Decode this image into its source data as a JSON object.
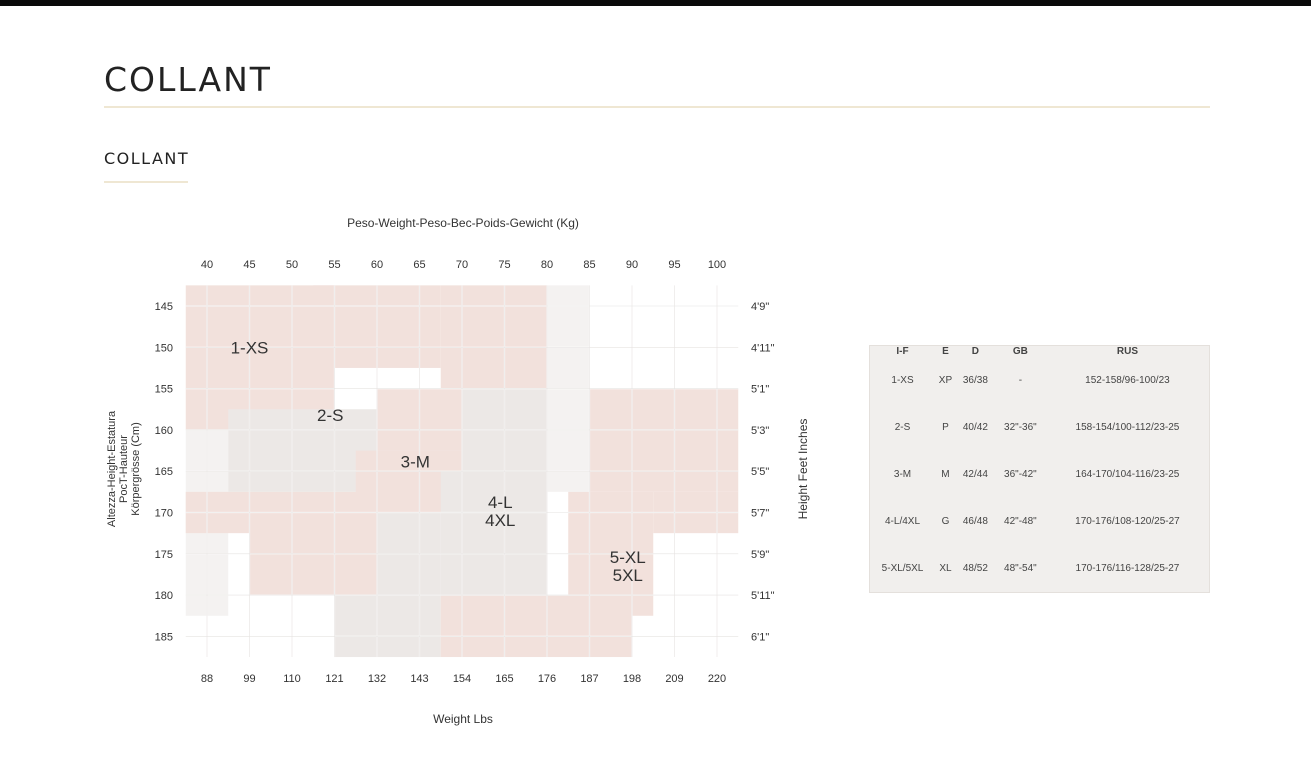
{
  "page": {
    "title": "COLLANT",
    "section_title": "COLLANT"
  },
  "chart_data": {
    "type": "heatmap",
    "title": "",
    "xlabel_top": "Peso-Weight-Peso-Вес-Poids-Gewicht (Kg)",
    "xlabel_bottom": "Weight Lbs",
    "ylabel_left": [
      "Altezza-Height-Estatura",
      "PocT-Hauteur",
      "Körpergrösse (Cm)"
    ],
    "ylabel_right": "Height Feet Inches",
    "x_ticks_kg": [
      40,
      45,
      50,
      55,
      60,
      65,
      70,
      75,
      80,
      85,
      90,
      95,
      100
    ],
    "x_ticks_lbs": [
      "88",
      "99",
      "110",
      "121",
      "132",
      "143",
      "154",
      "165",
      "176",
      "187",
      "198",
      "209",
      "220"
    ],
    "y_ticks_cm": [
      145,
      150,
      155,
      160,
      165,
      170,
      175,
      180,
      185
    ],
    "y_ticks_ft": [
      "4'9\"",
      "4'11\"",
      "5'1\"",
      "5'3\"",
      "5'5\"",
      "5'7\"",
      "5'9\"",
      "5'11\"",
      "6'1\""
    ],
    "colors": {
      "pink": "#f2e1dc",
      "gray": "#ece8e6",
      "light": "#f4f2f1"
    },
    "zones": [
      {
        "weight_kg": [
          37.5,
          55
        ],
        "height_cm": [
          142.5,
          160
        ],
        "color": "pink"
      },
      {
        "weight_kg": [
          52.5,
          67.5
        ],
        "height_cm": [
          142.5,
          152.5
        ],
        "color": "pink"
      },
      {
        "weight_kg": [
          67.5,
          80
        ],
        "height_cm": [
          142.5,
          155
        ],
        "color": "pink"
      },
      {
        "weight_kg": [
          80,
          85
        ],
        "height_cm": [
          142.5,
          155
        ],
        "color": "light"
      },
      {
        "weight_kg": [
          37.5,
          42.5
        ],
        "height_cm": [
          160,
          182.5
        ],
        "color": "light"
      },
      {
        "weight_kg": [
          42.5,
          60
        ],
        "height_cm": [
          157.5,
          167.5
        ],
        "color": "gray"
      },
      {
        "weight_kg": [
          60,
          70
        ],
        "height_cm": [
          155,
          162.5
        ],
        "color": "pink"
      },
      {
        "weight_kg": [
          70,
          80
        ],
        "height_cm": [
          155,
          165
        ],
        "color": "gray"
      },
      {
        "weight_kg": [
          37.5,
          45
        ],
        "height_cm": [
          167.5,
          172.5
        ],
        "color": "pink"
      },
      {
        "weight_kg": [
          45,
          60
        ],
        "height_cm": [
          167.5,
          180
        ],
        "color": "pink"
      },
      {
        "weight_kg": [
          57.5,
          70
        ],
        "height_cm": [
          162.5,
          170
        ],
        "color": "pink"
      },
      {
        "weight_kg": [
          60,
          67.5
        ],
        "height_cm": [
          170,
          180
        ],
        "color": "gray"
      },
      {
        "weight_kg": [
          67.5,
          80
        ],
        "height_cm": [
          165,
          180
        ],
        "color": "gray"
      },
      {
        "weight_kg": [
          55,
          67.5
        ],
        "height_cm": [
          180,
          187.5
        ],
        "color": "gray"
      },
      {
        "weight_kg": [
          67.5,
          90
        ],
        "height_cm": [
          180,
          187.5
        ],
        "color": "pink"
      },
      {
        "weight_kg": [
          80,
          85
        ],
        "height_cm": [
          155,
          167.5
        ],
        "color": "light"
      },
      {
        "weight_kg": [
          85,
          102.5
        ],
        "height_cm": [
          155,
          167.5
        ],
        "color": "pink"
      },
      {
        "weight_kg": [
          82.5,
          92.5
        ],
        "height_cm": [
          167.5,
          182.5
        ],
        "color": "pink"
      },
      {
        "weight_kg": [
          92.5,
          102.5
        ],
        "height_cm": [
          167.5,
          172.5
        ],
        "color": "pink"
      }
    ],
    "size_labels": [
      {
        "lines": [
          "1-XS"
        ],
        "weight_kg": 45,
        "height_cm": 150
      },
      {
        "lines": [
          "2-S"
        ],
        "weight_kg": 54.5,
        "height_cm": 158.2
      },
      {
        "lines": [
          "3-M"
        ],
        "weight_kg": 64.5,
        "height_cm": 163.8
      },
      {
        "lines": [
          "4-L",
          "4XL"
        ],
        "weight_kg": 74.5,
        "height_cm": 169.8
      },
      {
        "lines": [
          "5-XL",
          "5XL"
        ],
        "weight_kg": 89.5,
        "height_cm": 176.5
      }
    ]
  },
  "size_table": {
    "headers": [
      "I-F",
      "E",
      "D",
      "GB",
      "RUS"
    ],
    "rows": [
      [
        "1-XS",
        "XP",
        "36/38",
        "-",
        "152-158/96-100/23"
      ],
      [
        "2-S",
        "P",
        "40/42",
        "32\"-36\"",
        "158-154/100-112/23-25"
      ],
      [
        "3-M",
        "M",
        "42/44",
        "36\"-42\"",
        "164-170/104-116/23-25"
      ],
      [
        "4-L/4XL",
        "G",
        "46/48",
        "42\"-48\"",
        "170-176/108-120/25-27"
      ],
      [
        "5-XL/5XL",
        "XL",
        "48/52",
        "48\"-54\"",
        "170-176/116-128/25-27"
      ]
    ]
  }
}
